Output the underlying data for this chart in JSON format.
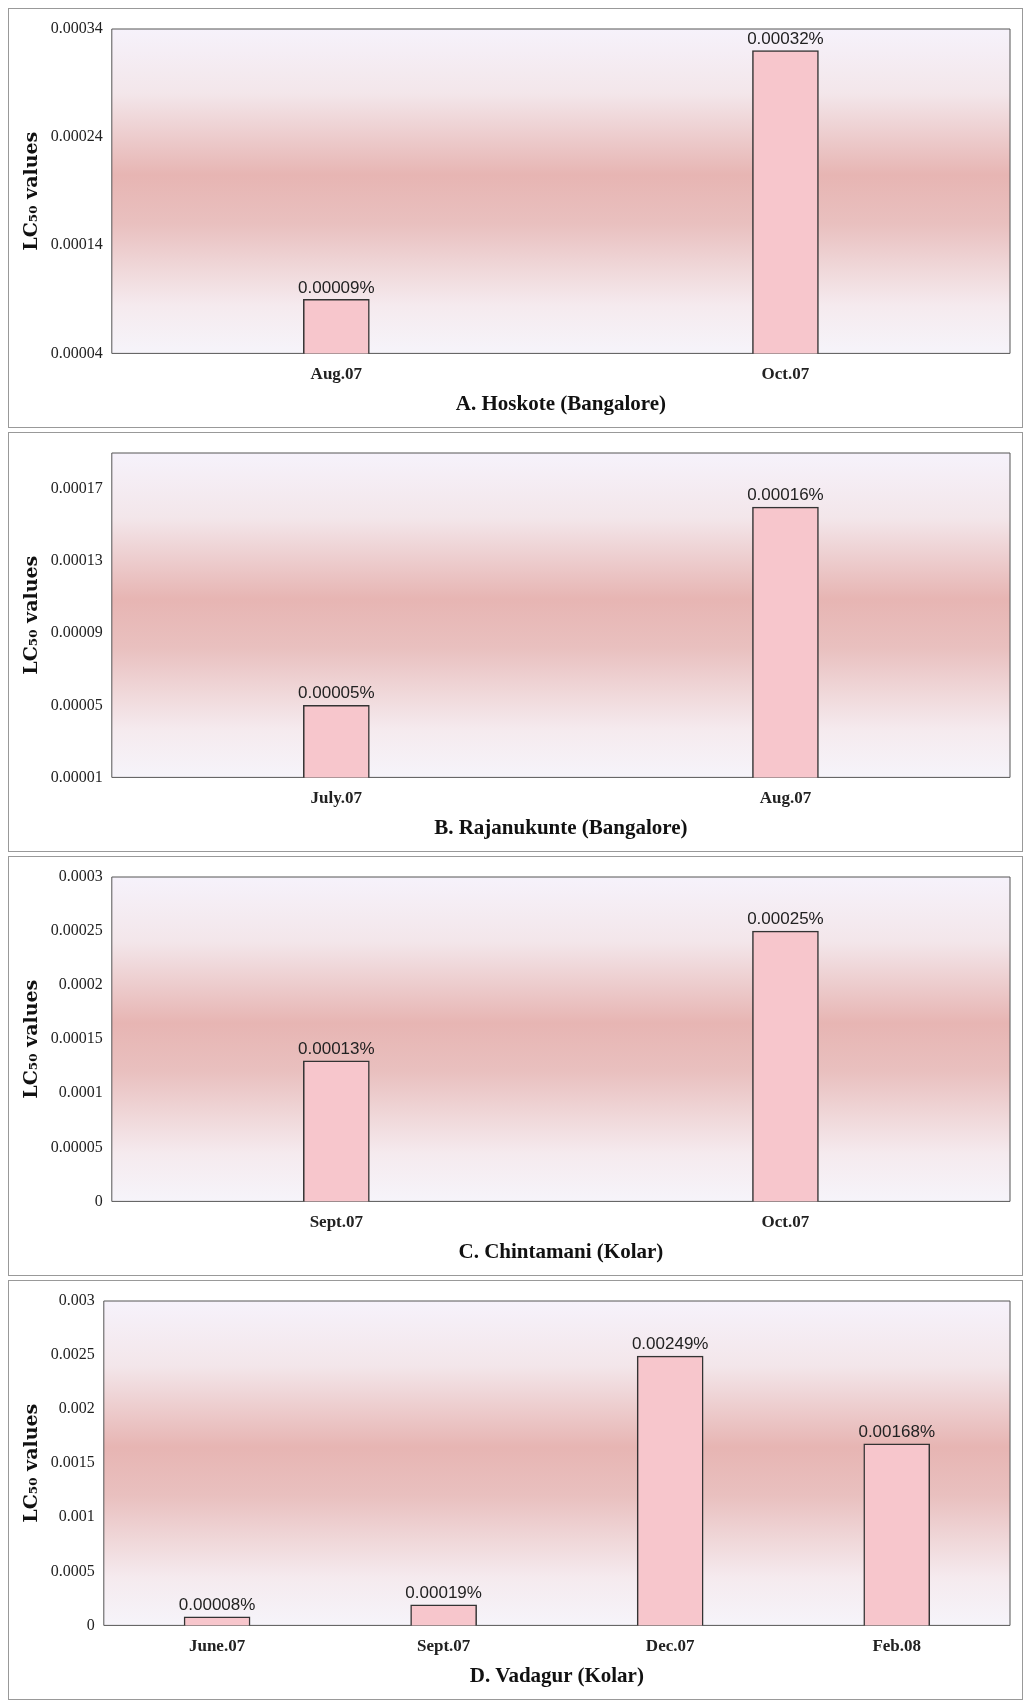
{
  "chart_data": [
    {
      "type": "bar",
      "xlabel": "A. Hoskote (Bangalore)",
      "ylabel": "LC₅₀ values",
      "categories": [
        "Aug.07",
        "Oct.07"
      ],
      "values": [
        9e-05,
        0.00032
      ],
      "value_labels": [
        "0.00009%",
        "0.00032%"
      ],
      "color": "#f7c6cc",
      "ylim": [
        4e-05,
        0.00034
      ],
      "yticks": [
        {
          "value": 4e-05,
          "label": "0.00004"
        },
        0.00014,
        0.00024,
        0.00034
      ]
    },
    {
      "type": "bar",
      "xlabel": "B. Rajanukunte (Bangalore)",
      "ylabel": "LC₅₀ values",
      "categories": [
        "July.07",
        "Aug.07"
      ],
      "values": [
        5e-05,
        0.00016
      ],
      "value_labels": [
        "0.00005%",
        "0.00016%"
      ],
      "color": "#f7c6cc",
      "ylim": [
        1e-05,
        0.00019
      ],
      "yticks": [
        {
          "value": 1e-05,
          "label": "0.00001"
        },
        {
          "value": 5e-05,
          "label": "0.00005"
        },
        {
          "value": 9e-05,
          "label": "0.00009"
        },
        0.00013,
        0.00017
      ]
    },
    {
      "type": "bar",
      "xlabel": "C. Chintamani (Kolar)",
      "ylabel": "LC₅₀ values",
      "categories": [
        "Sept.07",
        "Oct.07"
      ],
      "values": [
        0.00013,
        0.00025
      ],
      "value_labels": [
        "0.00013%",
        "0.00025%"
      ],
      "color": "#f7c6cc",
      "ylim": [
        0,
        0.0003
      ],
      "yticks": [
        0,
        {
          "value": 5e-05,
          "label": "0.00005"
        },
        0.0001,
        0.00015,
        0.0002,
        0.00025,
        0.0003
      ]
    },
    {
      "type": "bar",
      "xlabel": "D. Vadagur (Kolar)",
      "ylabel": "LC₅₀ values",
      "categories": [
        "June.07",
        "Sept.07",
        "Dec.07",
        "Feb.08"
      ],
      "values": [
        8e-05,
        0.00019,
        0.00249,
        0.00168
      ],
      "value_labels": [
        "0.00008%",
        "0.00019%",
        "0.00249%",
        "0.00168%"
      ],
      "color": "#f7c6cc",
      "ylim": [
        0,
        0.003
      ],
      "yticks": [
        0,
        0.0005,
        0.001,
        0.0015,
        0.002,
        0.0025,
        0.003
      ]
    }
  ]
}
